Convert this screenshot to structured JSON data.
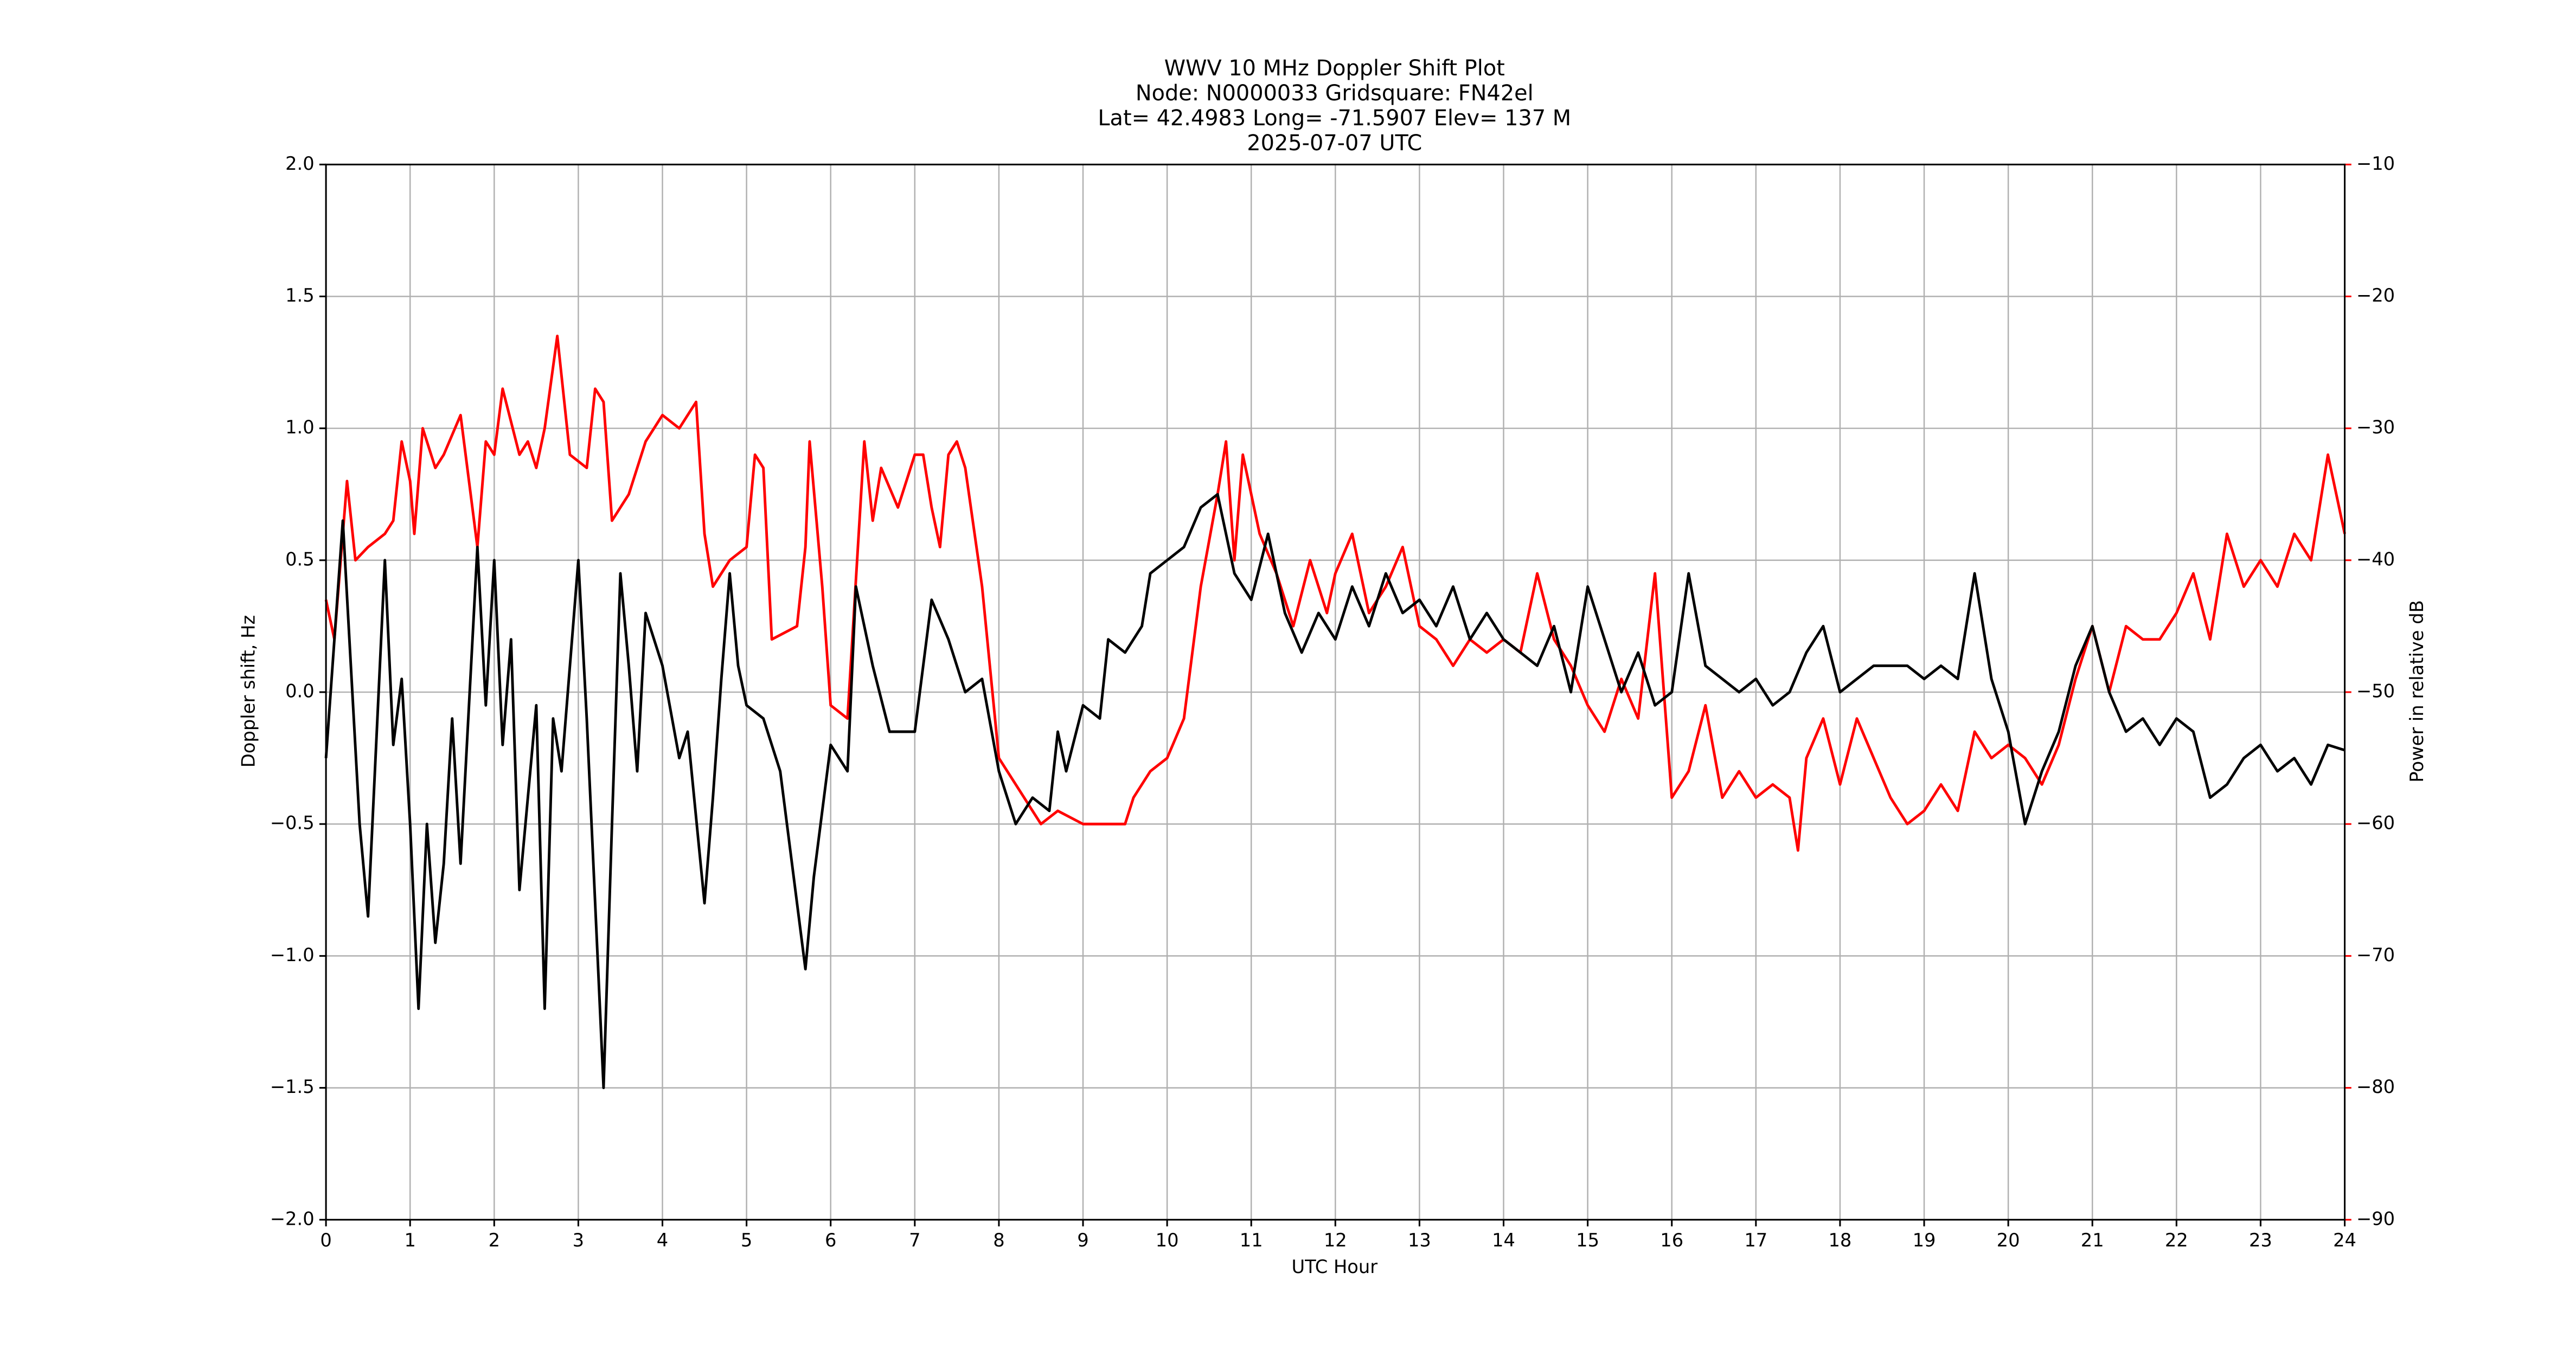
{
  "chart_data": {
    "type": "line",
    "title": [
      "WWV 10 MHz Doppler Shift Plot",
      "Node:  N0000033     Gridsquare:  FN42el",
      "Lat= 42.4983    Long= -71.5907    Elev= 137 M",
      "2025-07-07  UTC"
    ],
    "x_label": "UTC Hour",
    "y_label": "Doppler shift, Hz",
    "y2_label": "Power in relative dB",
    "xlim": [
      0,
      24
    ],
    "xticks": [
      0,
      1,
      2,
      3,
      4,
      5,
      6,
      7,
      8,
      9,
      10,
      11,
      12,
      13,
      14,
      15,
      16,
      17,
      18,
      19,
      20,
      21,
      22,
      23,
      24
    ],
    "ylim": [
      -2,
      2
    ],
    "yticks": [
      {
        "value": -2,
        "label": "−2.0"
      },
      {
        "value": -1.5,
        "label": "−1.5"
      },
      {
        "value": -1,
        "label": "−1.0"
      },
      {
        "value": -0.5,
        "label": "−0.5"
      },
      {
        "value": 0,
        "label": "0.0"
      },
      {
        "value": 0.5,
        "label": "0.5"
      },
      {
        "value": 1,
        "label": "1.0"
      },
      {
        "value": 1.5,
        "label": "1.5"
      },
      {
        "value": 2,
        "label": "2.0"
      }
    ],
    "y2lim": [
      -90,
      -10
    ],
    "y2ticks": [
      {
        "value": -90,
        "label": "−90"
      },
      {
        "value": -80,
        "label": "−80"
      },
      {
        "value": -70,
        "label": "−70"
      },
      {
        "value": -60,
        "label": "−60"
      },
      {
        "value": -50,
        "label": "−50"
      },
      {
        "value": -40,
        "label": "−40"
      },
      {
        "value": -30,
        "label": "−30"
      },
      {
        "value": -20,
        "label": "−20"
      },
      {
        "value": -10,
        "label": "−10"
      }
    ],
    "grid": true,
    "y2_color": "#ff0000",
    "series": [
      {
        "name": "Doppler shift",
        "color": "#000000",
        "x": [
          0,
          0.2,
          0.4,
          0.5,
          0.7,
          0.8,
          0.9,
          1.0,
          1.1,
          1.2,
          1.3,
          1.4,
          1.5,
          1.6,
          1.8,
          1.9,
          2.0,
          2.1,
          2.2,
          2.3,
          2.4,
          2.5,
          2.6,
          2.7,
          2.8,
          3.0,
          3.1,
          3.3,
          3.4,
          3.5,
          3.6,
          3.7,
          3.8,
          4.0,
          4.2,
          4.3,
          4.5,
          4.6,
          4.7,
          4.8,
          4.9,
          5.0,
          5.2,
          5.4,
          5.5,
          5.7,
          5.8,
          6.0,
          6.2,
          6.3,
          6.5,
          6.7,
          7.0,
          7.1,
          7.2,
          7.4,
          7.6,
          7.8,
          8.0,
          8.2,
          8.4,
          8.6,
          8.7,
          8.8,
          9.0,
          9.2,
          9.3,
          9.5,
          9.7,
          9.8,
          10.0,
          10.2,
          10.4,
          10.6,
          10.8,
          11.0,
          11.2,
          11.4,
          11.6,
          11.8,
          12.0,
          12.2,
          12.4,
          12.6,
          12.8,
          13.0,
          13.2,
          13.4,
          13.6,
          13.8,
          14.0,
          14.2,
          14.4,
          14.6,
          14.8,
          15.0,
          15.2,
          15.4,
          15.6,
          15.8,
          16.0,
          16.2,
          16.4,
          16.6,
          16.8,
          17.0,
          17.2,
          17.4,
          17.6,
          17.8,
          18.0,
          18.2,
          18.4,
          18.6,
          18.8,
          19.0,
          19.2,
          19.4,
          19.6,
          19.8,
          20.0,
          20.2,
          20.4,
          20.6,
          20.8,
          21.0,
          21.2,
          21.4,
          21.6,
          21.8,
          22.0,
          22.2,
          22.4,
          22.6,
          22.8,
          23.0,
          23.2,
          23.4,
          23.6,
          23.8,
          24.0
        ],
        "values": [
          -0.25,
          0.65,
          -0.5,
          -0.85,
          0.5,
          -0.2,
          0.05,
          -0.5,
          -1.2,
          -0.5,
          -0.95,
          -0.65,
          -0.1,
          -0.65,
          0.55,
          -0.05,
          0.5,
          -0.2,
          0.2,
          -0.75,
          -0.4,
          -0.05,
          -1.2,
          -0.1,
          -0.3,
          0.5,
          -0.1,
          -1.5,
          -0.5,
          0.45,
          0.1,
          -0.3,
          0.3,
          0.1,
          -0.25,
          -0.15,
          -0.8,
          -0.4,
          0.05,
          0.45,
          0.1,
          -0.05,
          -0.1,
          -0.3,
          -0.55,
          -1.05,
          -0.7,
          -0.2,
          -0.3,
          0.4,
          0.1,
          -0.15,
          -0.15,
          0.1,
          0.35,
          0.2,
          0.0,
          0.05,
          -0.3,
          -0.5,
          -0.4,
          -0.45,
          -0.15,
          -0.3,
          -0.05,
          -0.1,
          0.2,
          0.15,
          0.25,
          0.45,
          0.5,
          0.55,
          0.7,
          0.75,
          0.45,
          0.35,
          0.6,
          0.3,
          0.15,
          0.3,
          0.2,
          0.4,
          0.25,
          0.45,
          0.3,
          0.35,
          0.25,
          0.4,
          0.2,
          0.3,
          0.2,
          0.15,
          0.1,
          0.25,
          0.0,
          0.4,
          0.2,
          0.0,
          0.15,
          -0.05,
          0.0,
          0.45,
          0.1,
          0.05,
          0.0,
          0.05,
          -0.05,
          0.0,
          0.15,
          0.25,
          0.0,
          0.05,
          0.1,
          0.1,
          0.1,
          0.05,
          0.1,
          0.05,
          0.45,
          0.05,
          -0.15,
          -0.5,
          -0.3,
          -0.15,
          0.1,
          0.25,
          0.0,
          -0.15,
          -0.1,
          -0.2,
          -0.1,
          -0.15,
          -0.4,
          -0.35,
          -0.25,
          -0.2,
          -0.3,
          -0.25,
          -0.35,
          -0.2,
          -0.22
        ]
      },
      {
        "name": "Power",
        "color": "#ff0000",
        "axis": "y2",
        "x": [
          0,
          0.1,
          0.25,
          0.35,
          0.5,
          0.7,
          0.8,
          0.9,
          1.0,
          1.05,
          1.15,
          1.3,
          1.4,
          1.6,
          1.8,
          1.9,
          2.0,
          2.1,
          2.3,
          2.4,
          2.5,
          2.6,
          2.75,
          2.9,
          3.1,
          3.2,
          3.3,
          3.4,
          3.6,
          3.8,
          4.0,
          4.2,
          4.4,
          4.5,
          4.6,
          4.8,
          5.0,
          5.1,
          5.2,
          5.3,
          5.6,
          5.7,
          5.75,
          5.9,
          6.0,
          6.2,
          6.4,
          6.5,
          6.6,
          6.8,
          7.0,
          7.1,
          7.2,
          7.3,
          7.4,
          7.5,
          7.6,
          7.8,
          8.0,
          8.3,
          8.5,
          8.7,
          9.0,
          9.3,
          9.5,
          9.6,
          9.8,
          10.0,
          10.2,
          10.4,
          10.6,
          10.7,
          10.8,
          10.9,
          11.1,
          11.3,
          11.5,
          11.7,
          11.9,
          12.0,
          12.2,
          12.4,
          12.6,
          12.8,
          13.0,
          13.2,
          13.4,
          13.6,
          13.8,
          14.0,
          14.2,
          14.4,
          14.6,
          14.8,
          15.0,
          15.2,
          15.4,
          15.6,
          15.8,
          16.0,
          16.2,
          16.4,
          16.6,
          16.8,
          17.0,
          17.2,
          17.4,
          17.5,
          17.6,
          17.8,
          18.0,
          18.2,
          18.4,
          18.6,
          18.8,
          19.0,
          19.2,
          19.4,
          19.6,
          19.8,
          20.0,
          20.2,
          20.4,
          20.6,
          20.8,
          21.0,
          21.2,
          21.4,
          21.6,
          21.8,
          22.0,
          22.2,
          22.4,
          22.6,
          22.8,
          23.0,
          23.2,
          23.4,
          23.6,
          23.8,
          24.0
        ],
        "values": [
          -43,
          -46,
          -34,
          -40,
          -39,
          -38,
          -37,
          -31,
          -34,
          -38,
          -30,
          -33,
          -32,
          -29,
          -39,
          -31,
          -32,
          -27,
          -32,
          -31,
          -33,
          -30,
          -23,
          -32,
          -33,
          -27,
          -28,
          -37,
          -35,
          -31,
          -29,
          -30,
          -28,
          -38,
          -42,
          -40,
          -39,
          -32,
          -33,
          -46,
          -45,
          -39,
          -31,
          -42,
          -51,
          -52,
          -31,
          -37,
          -33,
          -36,
          -32,
          -32,
          -36,
          -39,
          -32,
          -31,
          -33,
          -42,
          -55,
          -58,
          -60,
          -59,
          -60,
          -60,
          -60,
          -58,
          -56,
          -55,
          -52,
          -42,
          -35,
          -31,
          -40,
          -32,
          -38,
          -41,
          -45,
          -40,
          -44,
          -41,
          -38,
          -44,
          -42,
          -39,
          -45,
          -46,
          -48,
          -46,
          -47,
          -46,
          -47,
          -41,
          -46,
          -48,
          -51,
          -53,
          -49,
          -52,
          -41,
          -58,
          -56,
          -51,
          -58,
          -56,
          -58,
          -57,
          -58,
          -62,
          -55,
          -52,
          -57,
          -52,
          -55,
          -58,
          -60,
          -59,
          -57,
          -59,
          -53,
          -55,
          -54,
          -55,
          -57,
          -54,
          -49,
          -45,
          -50,
          -45,
          -46,
          -46,
          -44,
          -41,
          -46,
          -38,
          -42,
          -40,
          -42,
          -38,
          -40,
          -32,
          -38
        ]
      }
    ]
  }
}
